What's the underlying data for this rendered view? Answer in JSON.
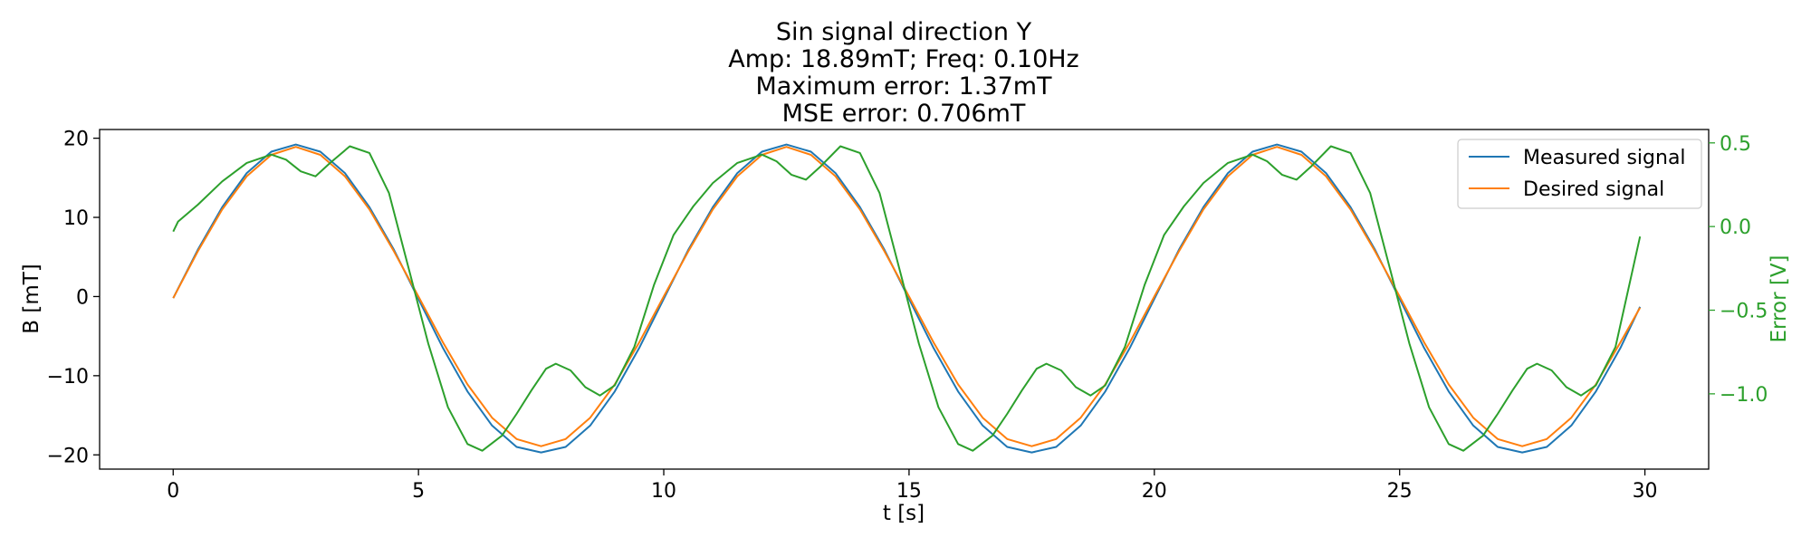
{
  "title_lines": [
    "Sin signal direction Y",
    "Amp: 18.89mT; Freq: 0.10Hz",
    "Maximum error: 1.37mT",
    "MSE error: 0.706mT"
  ],
  "colors": {
    "measured": "#1f77b4",
    "desired": "#ff7f0e",
    "error": "#2ca02c",
    "axis": "#000000"
  },
  "chart_data": {
    "type": "line",
    "title": "Sin signal direction Y\nAmp: 18.89mT; Freq: 0.10Hz\nMaximum error: 1.37mT\nMSE error: 0.706mT",
    "xlabel": "t [s]",
    "ylabel": "B [mT]",
    "ylabel_right": "Error [V]",
    "xlim": [
      -1.5,
      31.3
    ],
    "ylim": [
      -21.8,
      21.1
    ],
    "ylim_right": [
      -1.45,
      0.58
    ],
    "x_ticks": [
      0,
      5,
      10,
      15,
      20,
      25,
      30
    ],
    "y_ticks": [
      20,
      10,
      0,
      -10,
      -20
    ],
    "y_ticks_right": [
      0.5,
      0.0,
      -0.5,
      -1.0
    ],
    "x_tick_labels": [
      "0",
      "5",
      "10",
      "15",
      "20",
      "25",
      "30"
    ],
    "y_tick_labels": [
      "20",
      "10",
      "0",
      "−10",
      "−20"
    ],
    "y_tick_labels_right": [
      "0.5",
      "0.0",
      "−0.5",
      "−1.0"
    ],
    "legend": {
      "placement": "top-right",
      "entries": [
        "Measured signal",
        "Desired signal"
      ]
    },
    "grid": false,
    "series": [
      {
        "name": "Measured signal",
        "axis": "left",
        "x": [
          0,
          0.5,
          1,
          1.5,
          2,
          2.5,
          3,
          3.5,
          4,
          4.5,
          5,
          5.5,
          6,
          6.5,
          7,
          7.5,
          8,
          8.5,
          9,
          9.5,
          10,
          10.5,
          11,
          11.5,
          12,
          12.5,
          13,
          13.5,
          14,
          14.5,
          15,
          15.5,
          16,
          16.5,
          17,
          17.5,
          18,
          18.5,
          19,
          19.5,
          20,
          20.5,
          21,
          21.5,
          22,
          22.5,
          23,
          23.5,
          24,
          24.5,
          25,
          25.5,
          26,
          26.5,
          27,
          27.5,
          28,
          28.5,
          29,
          29.5,
          29.9
        ],
        "y": [
          -0.2,
          5.9,
          11.3,
          15.6,
          18.3,
          19.2,
          18.3,
          15.6,
          11.3,
          5.9,
          -0.3,
          -6.5,
          -12.0,
          -16.3,
          -19.0,
          -19.7,
          -19.0,
          -16.3,
          -12.0,
          -6.5,
          -0.3,
          5.9,
          11.3,
          15.6,
          18.3,
          19.2,
          18.3,
          15.6,
          11.3,
          5.9,
          -0.3,
          -6.5,
          -12.0,
          -16.3,
          -19.0,
          -19.7,
          -19.0,
          -16.3,
          -12.0,
          -6.5,
          -0.3,
          5.9,
          11.3,
          15.6,
          18.3,
          19.2,
          18.3,
          15.6,
          11.3,
          5.9,
          -0.3,
          -6.5,
          -12.0,
          -16.3,
          -19.0,
          -19.7,
          -19.0,
          -16.3,
          -12.0,
          -6.5,
          -1.3
        ]
      },
      {
        "name": "Desired signal",
        "axis": "left",
        "x": [
          0,
          0.5,
          1,
          1.5,
          2,
          2.5,
          3,
          3.5,
          4,
          4.5,
          5,
          5.5,
          6,
          6.5,
          7,
          7.5,
          8,
          8.5,
          9,
          9.5,
          10,
          10.5,
          11,
          11.5,
          12,
          12.5,
          13,
          13.5,
          14,
          14.5,
          15,
          15.5,
          16,
          16.5,
          17,
          17.5,
          18,
          18.5,
          19,
          19.5,
          20,
          20.5,
          21,
          21.5,
          22,
          22.5,
          23,
          23.5,
          24,
          24.5,
          25,
          25.5,
          26,
          26.5,
          27,
          27.5,
          28,
          28.5,
          29,
          29.5,
          29.9
        ],
        "y": [
          -0.2,
          5.7,
          11.0,
          15.2,
          17.9,
          18.9,
          17.9,
          15.2,
          11.0,
          5.7,
          0.0,
          -5.8,
          -11.1,
          -15.3,
          -18.0,
          -18.9,
          -18.0,
          -15.3,
          -11.1,
          -5.8,
          0.0,
          5.7,
          11.0,
          15.2,
          17.9,
          18.9,
          17.9,
          15.2,
          11.0,
          5.7,
          0.0,
          -5.8,
          -11.1,
          -15.3,
          -18.0,
          -18.9,
          -18.0,
          -15.3,
          -11.1,
          -5.8,
          0.0,
          5.7,
          11.0,
          15.2,
          17.9,
          18.9,
          17.9,
          15.2,
          11.0,
          5.7,
          0.0,
          -5.8,
          -11.1,
          -15.3,
          -18.0,
          -18.9,
          -18.0,
          -15.3,
          -11.1,
          -5.8,
          -1.4
        ]
      },
      {
        "name": "Error",
        "axis": "right",
        "x": [
          0,
          0.1,
          0.5,
          1.0,
          1.5,
          2.0,
          2.3,
          2.6,
          2.9,
          3.2,
          3.6,
          4.0,
          4.4,
          4.8,
          5.2,
          5.6,
          6.0,
          6.3,
          6.7,
          7.0,
          7.3,
          7.6,
          7.8,
          8.1,
          8.4,
          8.7,
          9.0,
          9.4,
          9.8,
          10.2,
          10.6,
          11.0,
          11.5,
          12.0,
          12.3,
          12.6,
          12.9,
          13.2,
          13.6,
          14.0,
          14.4,
          14.8,
          15.2,
          15.6,
          16.0,
          16.3,
          16.7,
          17.0,
          17.3,
          17.6,
          17.8,
          18.1,
          18.4,
          18.7,
          19.0,
          19.4,
          19.8,
          20.2,
          20.6,
          21.0,
          21.5,
          22.0,
          22.3,
          22.6,
          22.9,
          23.2,
          23.6,
          24.0,
          24.4,
          24.8,
          25.2,
          25.6,
          26.0,
          26.3,
          26.7,
          27.0,
          27.3,
          27.6,
          27.8,
          28.1,
          28.4,
          28.7,
          29.0,
          29.4,
          29.9
        ],
        "y": [
          -0.03,
          0.03,
          0.13,
          0.27,
          0.38,
          0.43,
          0.4,
          0.33,
          0.3,
          0.38,
          0.48,
          0.44,
          0.2,
          -0.25,
          -0.7,
          -1.08,
          -1.3,
          -1.34,
          -1.25,
          -1.12,
          -0.98,
          -0.85,
          -0.82,
          -0.86,
          -0.96,
          -1.01,
          -0.95,
          -0.72,
          -0.35,
          -0.05,
          0.12,
          0.26,
          0.38,
          0.43,
          0.39,
          0.31,
          0.28,
          0.36,
          0.48,
          0.44,
          0.2,
          -0.25,
          -0.7,
          -1.08,
          -1.3,
          -1.34,
          -1.25,
          -1.12,
          -0.98,
          -0.85,
          -0.82,
          -0.86,
          -0.96,
          -1.01,
          -0.95,
          -0.72,
          -0.35,
          -0.05,
          0.12,
          0.26,
          0.38,
          0.43,
          0.39,
          0.31,
          0.28,
          0.36,
          0.48,
          0.44,
          0.2,
          -0.25,
          -0.7,
          -1.08,
          -1.3,
          -1.34,
          -1.25,
          -1.12,
          -0.98,
          -0.85,
          -0.82,
          -0.86,
          -0.96,
          -1.01,
          -0.95,
          -0.72,
          -0.06
        ]
      }
    ]
  }
}
